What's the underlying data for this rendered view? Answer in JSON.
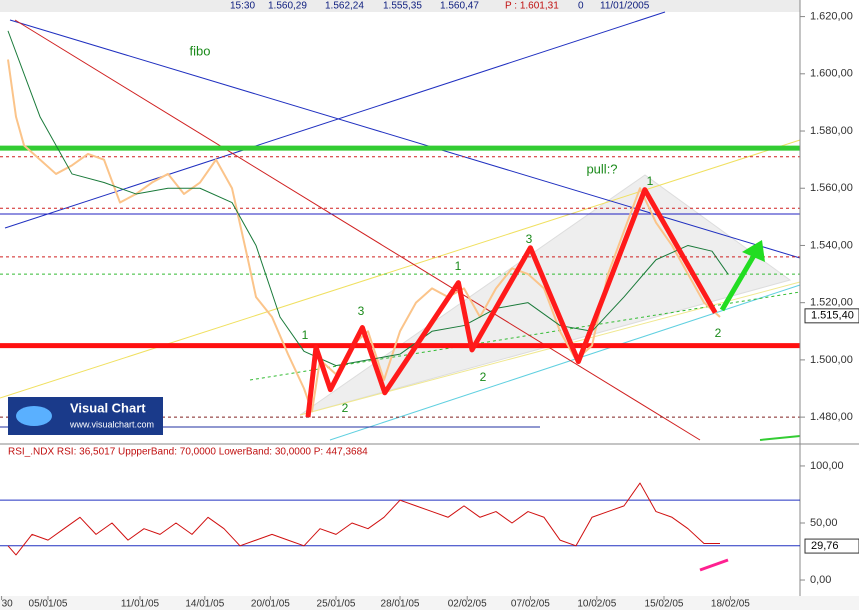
{
  "chart_data": [
    {
      "type": "line",
      "header": [
        "15:30",
        "1.560,29",
        "1.562,24",
        "1.555,35",
        "1.560,47",
        "P : 1.601,31",
        "0",
        "11/01/2005"
      ],
      "xlim": [
        0,
        100
      ],
      "ylim": [
        1472,
        1623
      ],
      "xticks": [
        {
          "value": 0.2,
          "label": "30"
        },
        {
          "value": 6,
          "label": "05/01/05"
        },
        {
          "value": 17.5,
          "label": "11/01/05"
        },
        {
          "value": 25.6,
          "label": "14/01/05"
        },
        {
          "value": 33.8,
          "label": "20/01/05"
        },
        {
          "value": 42,
          "label": "25/01/05"
        },
        {
          "value": 50,
          "label": "28/01/05"
        },
        {
          "value": 58.4,
          "label": "02/02/05"
        },
        {
          "value": 66.3,
          "label": "07/02/05"
        },
        {
          "value": 74.6,
          "label": "10/02/05"
        },
        {
          "value": 83,
          "label": "15/02/05"
        },
        {
          "value": 91.3,
          "label": "18/02/05"
        }
      ],
      "yticks": [
        {
          "value": 1480,
          "label": "1.480,00"
        },
        {
          "value": 1500,
          "label": "1.500,00"
        },
        {
          "value": 1520,
          "label": "1.520,00"
        },
        {
          "value": 1540,
          "label": "1.540,00"
        },
        {
          "value": 1560,
          "label": "1.560,00"
        },
        {
          "value": 1580,
          "label": "1.580,00"
        },
        {
          "value": 1600,
          "label": "1.600,00"
        },
        {
          "value": 1620,
          "label": "1.620,00"
        }
      ],
      "last_value": {
        "value": 1515.4,
        "label": "1.515,40"
      },
      "series": [
        {
          "color": "#fbc48a",
          "width": 2,
          "x": [
            1,
            2,
            3,
            5,
            7,
            9,
            11,
            13,
            15,
            17,
            19,
            21,
            23,
            25,
            27,
            29,
            31,
            32,
            34,
            36,
            38,
            39,
            40,
            42,
            44,
            46,
            48,
            50,
            52,
            54,
            56,
            58,
            60,
            62,
            64,
            66,
            68,
            70,
            72,
            74,
            76,
            78,
            80,
            82,
            84,
            86,
            88,
            90
          ],
          "values": [
            1605,
            1585,
            1575,
            1570,
            1565,
            1568,
            1572,
            1570,
            1555,
            1558,
            1562,
            1565,
            1558,
            1562,
            1570,
            1560,
            1535,
            1522,
            1515,
            1502,
            1490,
            1482,
            1500,
            1495,
            1505,
            1510,
            1493,
            1510,
            1520,
            1525,
            1522,
            1525,
            1515,
            1525,
            1532,
            1530,
            1525,
            1510,
            1500,
            1505,
            1530,
            1545,
            1560,
            1548,
            1540,
            1530,
            1520,
            1515
          ]
        },
        {
          "color": "#1a7a3a",
          "width": 1,
          "x": [
            1,
            5,
            9,
            13,
            17,
            21,
            25,
            29,
            32,
            35,
            38,
            42,
            46,
            50,
            54,
            58,
            62,
            66,
            70,
            74,
            78,
            82,
            86,
            89,
            91
          ],
          "values": [
            1615,
            1585,
            1565,
            1562,
            1558,
            1560,
            1560,
            1555,
            1540,
            1515,
            1503,
            1498,
            1500,
            1502,
            1510,
            1512,
            1518,
            1520,
            1512,
            1510,
            1522,
            1535,
            1540,
            1538,
            1530
          ]
        },
        {
          "color": "#ff1a1a",
          "width": 5,
          "x": [
            38.5,
            39.5,
            41.3,
            45.3,
            48.1,
            57.3,
            59,
            66.3,
            72.3,
            80.6,
            89.4
          ],
          "values": [
            1480,
            1504.4,
            1489.6,
            1511.3,
            1488.5,
            1527,
            1503.5,
            1539.2,
            1499.4,
            1559.5,
            1516.5
          ]
        }
      ],
      "levels": [
        {
          "value": 1574,
          "color": "#33cc33",
          "style": "thick"
        },
        {
          "value": 1571,
          "color": "#d02020",
          "style": "dashed"
        },
        {
          "value": 1553,
          "color": "#d02020",
          "style": "dashed"
        },
        {
          "value": 1551,
          "color": "#2020c0",
          "style": "solid"
        },
        {
          "value": 1536,
          "color": "#d02020",
          "style": "dashed"
        },
        {
          "value": 1530,
          "color": "#33bb33",
          "style": "dashed"
        },
        {
          "value": 1505,
          "color": "#ff1010",
          "style": "thick"
        },
        {
          "value": 1480,
          "color": "#802020",
          "style": "dashed"
        }
      ],
      "annotations": [
        "fibo",
        "pull:?",
        "1",
        "3",
        "1",
        "3",
        "1",
        "2",
        "2",
        "2"
      ]
    },
    {
      "type": "line",
      "header": "RSI_.NDX RSI: 36,5017 UppperBand: 70,0000 LowerBand: 30,0000 P: 447,3684",
      "ylim": [
        -10.5,
        109.6
      ],
      "xlim": [
        0,
        100
      ],
      "yticks": [
        {
          "value": 0,
          "label": "0,00"
        },
        {
          "value": 50,
          "label": "50,00"
        },
        {
          "value": 100,
          "label": "100,00"
        }
      ],
      "bands": [
        70,
        30
      ],
      "last_value": {
        "value": 29.76,
        "label": "29,76"
      },
      "series": [
        {
          "color": "#d01010",
          "width": 1,
          "x": [
            1,
            2,
            4,
            6,
            8,
            10,
            12,
            14,
            16,
            18,
            20,
            22,
            24,
            26,
            28,
            30,
            32,
            34,
            36,
            38,
            40,
            42,
            44,
            46,
            48,
            50,
            52,
            54,
            56,
            58,
            60,
            62,
            64,
            66,
            68,
            70,
            72,
            74,
            76,
            78,
            80,
            82,
            84,
            86,
            88,
            90
          ],
          "values": [
            30,
            22,
            40,
            35,
            45,
            55,
            40,
            50,
            35,
            45,
            40,
            50,
            40,
            55,
            45,
            30,
            35,
            40,
            35,
            30,
            45,
            40,
            50,
            45,
            55,
            70,
            65,
            60,
            55,
            65,
            55,
            60,
            50,
            60,
            55,
            35,
            30,
            55,
            60,
            65,
            85,
            60,
            55,
            45,
            32,
            32
          ]
        }
      ]
    }
  ],
  "logo": {
    "title": "Visual Chart",
    "url": "www.visualchart.com"
  }
}
